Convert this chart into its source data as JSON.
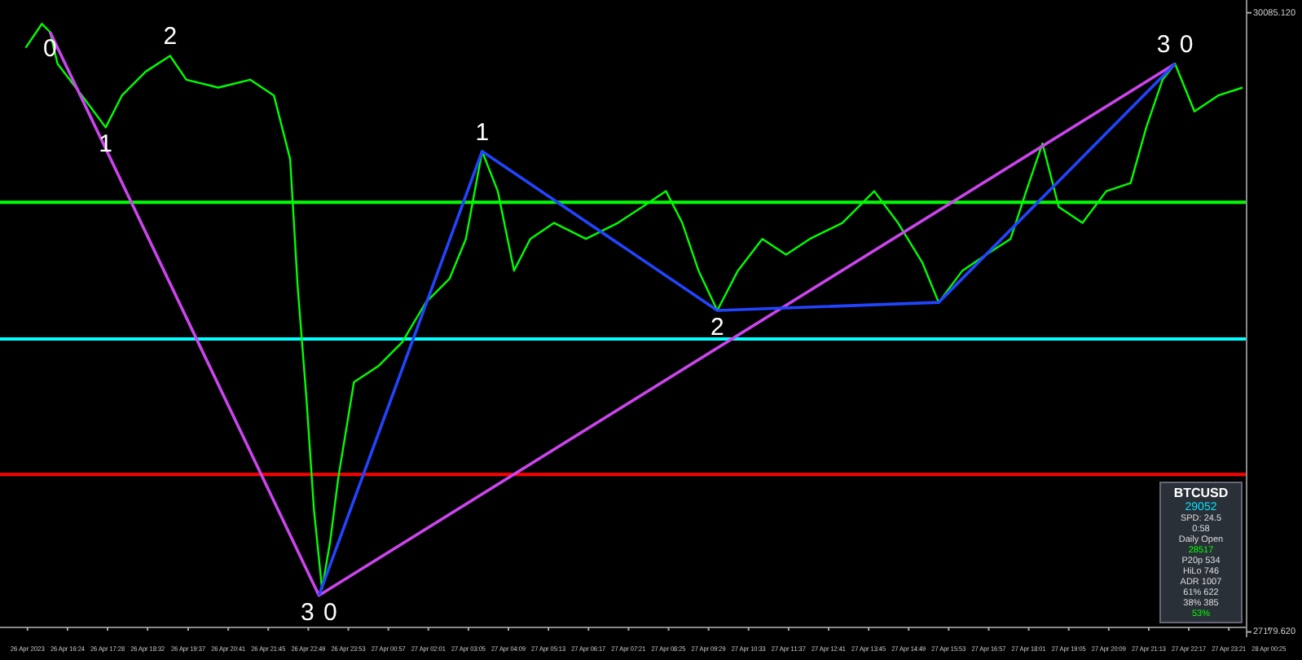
{
  "chart_data": {
    "type": "line",
    "title": "BTCUSD",
    "xlim": [
      "2023-04-26T14:36",
      "2023-04-28T01:18"
    ],
    "ylim": [
      27155,
      30145
    ],
    "xticks": [
      {
        "value": "2023-04-26T15:20",
        "label": "26 Apr 2023"
      },
      {
        "value": "2023-04-26T16:24",
        "label": "26 Apr 16:24"
      },
      {
        "value": "2023-04-26T17:28",
        "label": "26 Apr 17:28"
      },
      {
        "value": "2023-04-26T18:32",
        "label": "26 Apr 18:32"
      },
      {
        "value": "2023-04-26T19:37",
        "label": "26 Apr 19:37"
      },
      {
        "value": "2023-04-26T20:41",
        "label": "26 Apr 20:41"
      },
      {
        "value": "2023-04-26T21:45",
        "label": "26 Apr 21:45"
      },
      {
        "value": "2023-04-26T22:49",
        "label": "26 Apr 22:49"
      },
      {
        "value": "2023-04-26T23:53",
        "label": "26 Apr 23:53"
      },
      {
        "value": "2023-04-27T00:57",
        "label": "27 Apr 00:57"
      },
      {
        "value": "2023-04-27T02:01",
        "label": "27 Apr 02:01"
      },
      {
        "value": "2023-04-27T03:05",
        "label": "27 Apr 03:05"
      },
      {
        "value": "2023-04-27T04:09",
        "label": "27 Apr 04:09"
      },
      {
        "value": "2023-04-27T05:13",
        "label": "27 Apr 05:13"
      },
      {
        "value": "2023-04-27T06:17",
        "label": "27 Apr 06:17"
      },
      {
        "value": "2023-04-27T07:21",
        "label": "27 Apr 07:21"
      },
      {
        "value": "2023-04-27T08:25",
        "label": "27 Apr 08:25"
      },
      {
        "value": "2023-04-27T09:29",
        "label": "27 Apr 09:29"
      },
      {
        "value": "2023-04-27T10:33",
        "label": "27 Apr 10:33"
      },
      {
        "value": "2023-04-27T11:37",
        "label": "27 Apr 11:37"
      },
      {
        "value": "2023-04-27T12:41",
        "label": "27 Apr 12:41"
      },
      {
        "value": "2023-04-27T13:45",
        "label": "27 Apr 13:45"
      },
      {
        "value": "2023-04-27T14:49",
        "label": "27 Apr 14:49"
      },
      {
        "value": "2023-04-27T15:53",
        "label": "27 Apr 15:53"
      },
      {
        "value": "2023-04-27T16:57",
        "label": "27 Apr 16:57"
      },
      {
        "value": "2023-04-27T18:01",
        "label": "27 Apr 18:01"
      },
      {
        "value": "2023-04-27T19:05",
        "label": "27 Apr 19:05"
      },
      {
        "value": "2023-04-27T20:09",
        "label": "27 Apr 20:09"
      },
      {
        "value": "2023-04-27T21:13",
        "label": "27 Apr 21:13"
      },
      {
        "value": "2023-04-27T22:17",
        "label": "27 Apr 22:17"
      },
      {
        "value": "2023-04-27T23:21",
        "label": "27 Apr 23:21"
      },
      {
        "value": "2023-04-28T00:25",
        "label": "28 Apr 00:25"
      }
    ],
    "yticks": [
      {
        "value": 30085.12,
        "label": "30085.120"
      },
      {
        "value": 27179.62,
        "label": "27179.620"
      }
    ],
    "grid": false,
    "series": [
      {
        "color": "#00ff00",
        "x": [
          "2023-04-26T15:17",
          "2023-04-26T15:43",
          "2023-04-26T15:56",
          "2023-04-26T16:08",
          "2023-04-26T16:47",
          "2023-04-26T17:25",
          "2023-04-26T17:51",
          "2023-04-26T18:29",
          "2023-04-26T19:08",
          "2023-04-26T19:34",
          "2023-04-26T20:25",
          "2023-04-26T21:16",
          "2023-04-26T21:54",
          "2023-04-26T22:20",
          "2023-04-26T22:32",
          "2023-04-26T22:46",
          "2023-04-26T22:58",
          "2023-04-26T23:11",
          "2023-04-26T23:24",
          "2023-04-26T23:37",
          "2023-04-27T00:02",
          "2023-04-27T00:41",
          "2023-04-27T01:19",
          "2023-04-27T01:57",
          "2023-04-27T02:35",
          "2023-04-27T03:01",
          "2023-04-27T03:27",
          "2023-04-27T03:52",
          "2023-04-27T04:18",
          "2023-04-27T04:44",
          "2023-04-27T05:22",
          "2023-04-27T06:13",
          "2023-04-27T07:04",
          "2023-04-27T07:43",
          "2023-04-27T08:21",
          "2023-04-27T08:47",
          "2023-04-27T09:13",
          "2023-04-27T09:43",
          "2023-04-27T10:16",
          "2023-04-27T10:55",
          "2023-04-27T11:33",
          "2023-04-27T12:11",
          "2023-04-27T13:03",
          "2023-04-27T13:54",
          "2023-04-27T14:32",
          "2023-04-27T15:11",
          "2023-04-27T15:37",
          "2023-04-27T16:15",
          "2023-04-27T16:53",
          "2023-04-27T17:32",
          "2023-04-27T17:57",
          "2023-04-27T18:23",
          "2023-04-27T18:49",
          "2023-04-27T19:27",
          "2023-04-27T20:05",
          "2023-04-27T20:44",
          "2023-04-27T21:09",
          "2023-04-27T21:35",
          "2023-04-27T21:55",
          "2023-04-27T22:26",
          "2023-04-27T23:04",
          "2023-04-27T23:43"
        ],
        "values": [
          29921,
          30033,
          29995,
          29846,
          29697,
          29547,
          29697,
          29809,
          29883,
          29771,
          29734,
          29771,
          29697,
          29398,
          28800,
          28277,
          27754,
          27381,
          27605,
          27904,
          28352,
          28427,
          28539,
          28726,
          28838,
          29024,
          29435,
          29248,
          28875,
          29024,
          29099,
          29024,
          29099,
          29174,
          29248,
          29099,
          28875,
          28688,
          28875,
          29024,
          28950,
          29024,
          29099,
          29248,
          29099,
          28912,
          28726,
          28875,
          28950,
          29024,
          29248,
          29472,
          29174,
          29099,
          29248,
          29286,
          29547,
          29771,
          29846,
          29622,
          29697,
          29734
        ]
      },
      {
        "color": "#cc44ee",
        "x": [
          "2023-04-26T15:56",
          "2023-04-26T23:06",
          "2023-04-27T21:55"
        ],
        "values": [
          29995,
          27351,
          29846
        ]
      },
      {
        "color": "#2244ff",
        "x": [
          "2023-04-26T23:06",
          "2023-04-27T03:27",
          "2023-04-27T09:43",
          "2023-04-27T15:37",
          "2023-04-27T21:55"
        ],
        "values": [
          27351,
          29435,
          28688,
          28726,
          29846
        ]
      }
    ],
    "ref_lines": [
      {
        "axis": "y",
        "value": 29196,
        "color": "#00ff00"
      },
      {
        "axis": "y",
        "value": 28554,
        "color": "#00ffff"
      },
      {
        "axis": "y",
        "value": 27919,
        "color": "#ff0000"
      }
    ],
    "annotations": [
      {
        "text": "0",
        "x": "2023-04-26T15:56",
        "y": 29995
      },
      {
        "text": "1",
        "x": "2023-04-26T17:25",
        "y": 29547
      },
      {
        "text": "2",
        "x": "2023-04-26T19:08",
        "y": 29883
      },
      {
        "text": "3",
        "x": "2023-04-26T23:06",
        "y": 27351
      },
      {
        "text": "0",
        "x": "2023-04-26T23:06",
        "y": 27351
      },
      {
        "text": "1",
        "x": "2023-04-27T03:27",
        "y": 29435
      },
      {
        "text": "2",
        "x": "2023-04-27T09:43",
        "y": 28688
      },
      {
        "text": "3",
        "x": "2023-04-27T21:55",
        "y": 29846
      },
      {
        "text": "0",
        "x": "2023-04-27T21:55",
        "y": 29846
      },
      "29052",
      "SPD: 24.5",
      "0:58",
      "Daily Open",
      "28517",
      "P20p 534",
      "HiLo 746",
      "ADR 1007",
      "61% 622",
      "38% 385",
      "53%"
    ]
  }
}
